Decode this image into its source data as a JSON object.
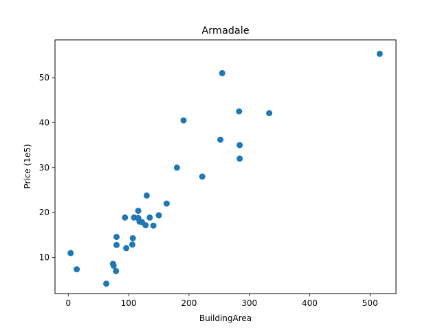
{
  "chart_data": {
    "type": "scatter",
    "title": "Armadale",
    "xlabel": "BuildingArea",
    "ylabel": "Price (1e5)",
    "xlim": [
      -22,
      543
    ],
    "ylim": [
      2.0,
      58.4
    ],
    "xticks": [
      0,
      100,
      200,
      300,
      400,
      500
    ],
    "yticks": [
      10,
      20,
      30,
      40,
      50
    ],
    "grid": false,
    "marker_color": "#1f77b4",
    "points": [
      {
        "x": 4,
        "y": 11.0
      },
      {
        "x": 14,
        "y": 7.4
      },
      {
        "x": 63,
        "y": 4.2
      },
      {
        "x": 74,
        "y": 8.6
      },
      {
        "x": 75,
        "y": 8.2
      },
      {
        "x": 79,
        "y": 7.0
      },
      {
        "x": 80,
        "y": 12.8
      },
      {
        "x": 80,
        "y": 14.6
      },
      {
        "x": 94,
        "y": 18.9
      },
      {
        "x": 96,
        "y": 12.1
      },
      {
        "x": 106,
        "y": 12.9
      },
      {
        "x": 107,
        "y": 14.3
      },
      {
        "x": 109,
        "y": 18.9
      },
      {
        "x": 116,
        "y": 18.8
      },
      {
        "x": 116,
        "y": 20.4
      },
      {
        "x": 118,
        "y": 18.0
      },
      {
        "x": 122,
        "y": 17.9
      },
      {
        "x": 128,
        "y": 17.2
      },
      {
        "x": 130,
        "y": 23.8
      },
      {
        "x": 135,
        "y": 18.9
      },
      {
        "x": 141,
        "y": 17.1
      },
      {
        "x": 150,
        "y": 19.4
      },
      {
        "x": 163,
        "y": 22.0
      },
      {
        "x": 180,
        "y": 30.0
      },
      {
        "x": 191,
        "y": 40.5
      },
      {
        "x": 222,
        "y": 28.0
      },
      {
        "x": 252,
        "y": 36.2
      },
      {
        "x": 255,
        "y": 51.0
      },
      {
        "x": 283,
        "y": 42.5
      },
      {
        "x": 284,
        "y": 35.0
      },
      {
        "x": 284,
        "y": 32.0
      },
      {
        "x": 333,
        "y": 42.1
      },
      {
        "x": 516,
        "y": 55.3
      }
    ]
  }
}
